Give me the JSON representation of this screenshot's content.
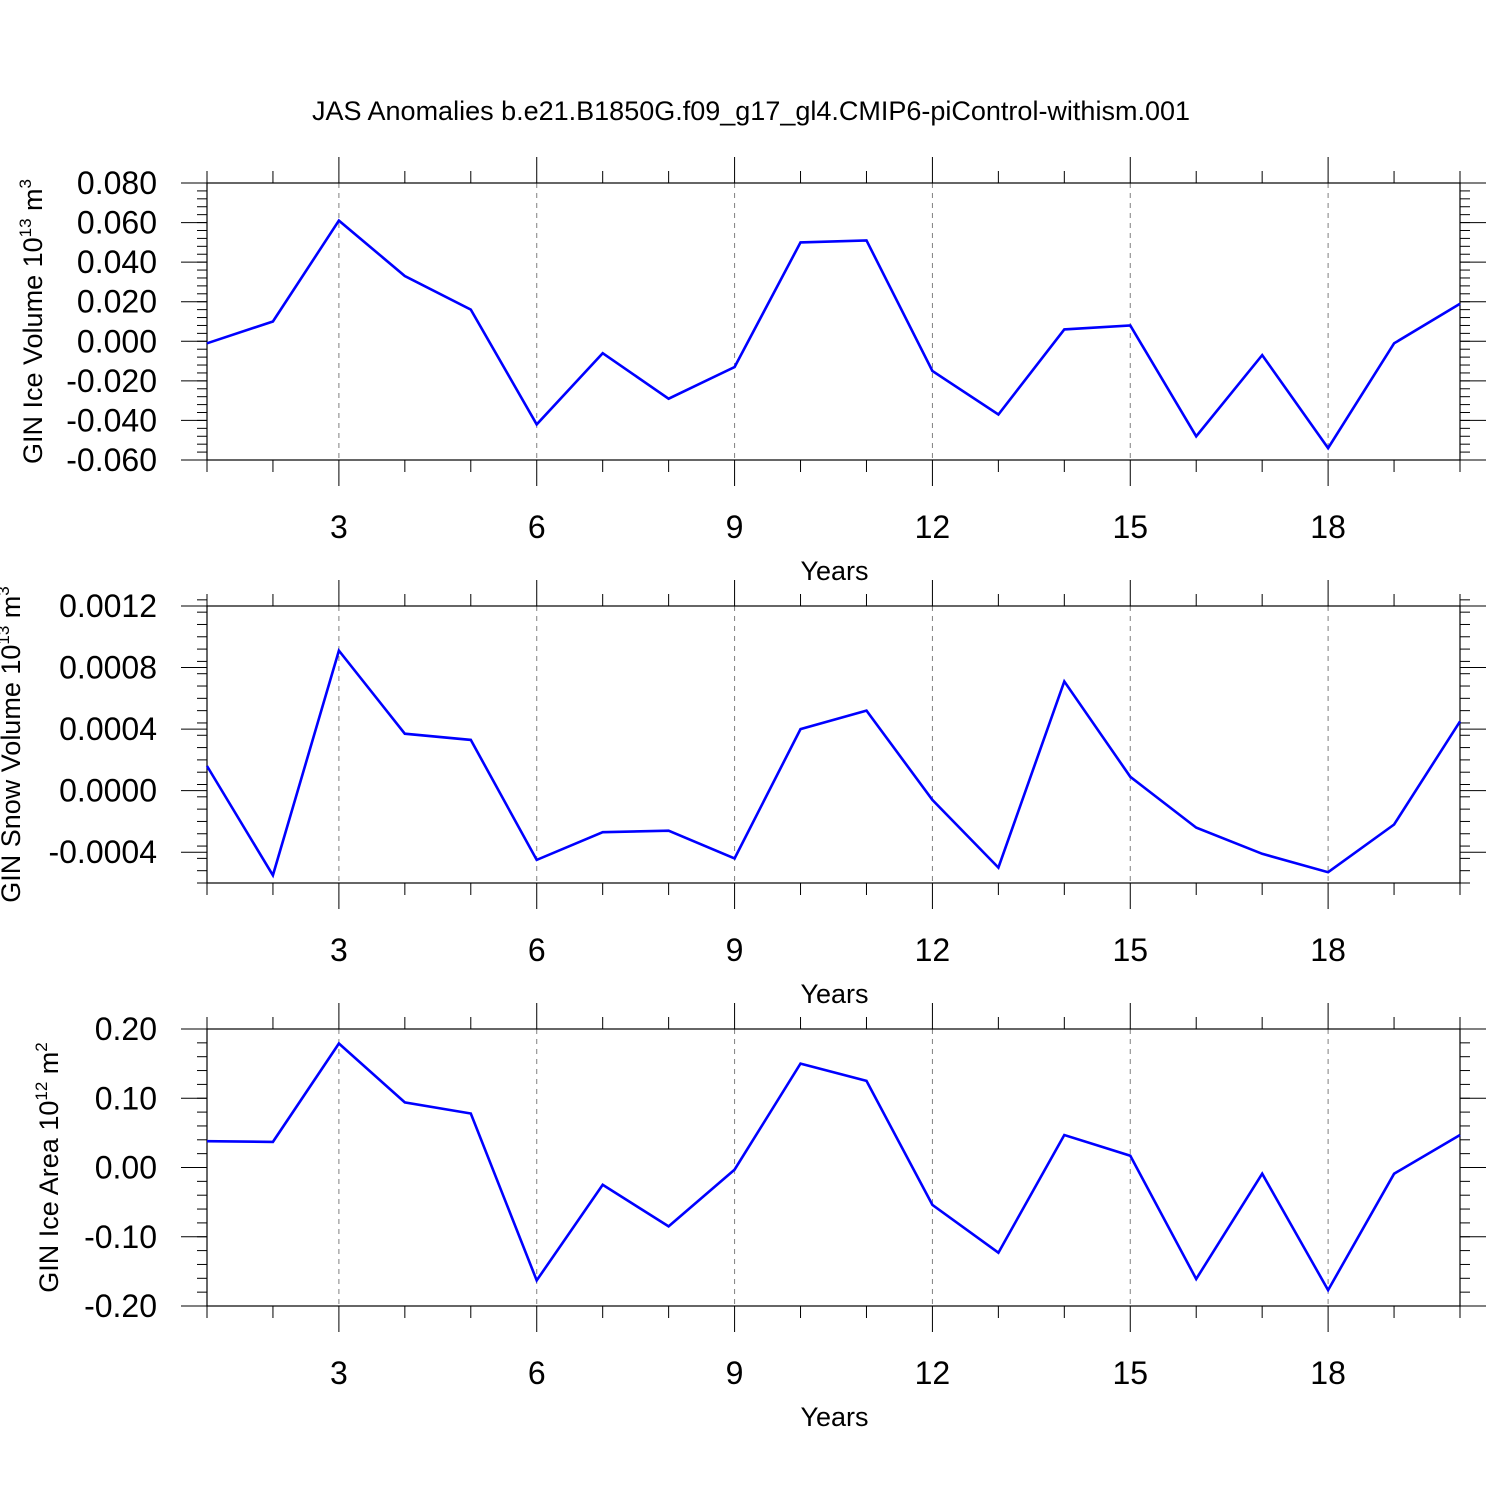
{
  "title": "JAS Anomalies b.e21.B1850G.f09_g17_gl4.CMIP6-piControl-withism.001",
  "colors": {
    "line": "#0000ff",
    "axis": "#000000",
    "grid": "#808080",
    "background": "#ffffff"
  },
  "chart_data": [
    {
      "type": "line",
      "ylabel": "GIN Ice Volume 10",
      "ylabel_sup": "13",
      "ylabel_unit": " m",
      "ylabel_unit_sup": "3",
      "xlabel": "Years",
      "xlim": [
        1,
        20
      ],
      "ylim": [
        -0.06,
        0.08
      ],
      "x_ticks": [
        3,
        6,
        9,
        12,
        15,
        18
      ],
      "y_ticks": [
        "0.080",
        "0.060",
        "0.040",
        "0.020",
        "0.000",
        "-0.020",
        "-0.040",
        "-0.060"
      ],
      "grid": "vertical dashed at major x ticks",
      "x": [
        1,
        2,
        3,
        4,
        5,
        6,
        7,
        8,
        9,
        10,
        11,
        12,
        13,
        14,
        15,
        16,
        17,
        18,
        19,
        20
      ],
      "series": [
        {
          "values": [
            -0.001,
            0.01,
            0.061,
            0.033,
            0.016,
            -0.042,
            -0.006,
            -0.029,
            -0.013,
            0.05,
            0.051,
            -0.015,
            -0.037,
            0.006,
            0.008,
            -0.048,
            -0.007,
            -0.054,
            -0.001,
            0.019
          ]
        }
      ]
    },
    {
      "type": "line",
      "ylabel": "GIN Snow Volume 10",
      "ylabel_sup": "13",
      "ylabel_unit": " m",
      "ylabel_unit_sup": "3",
      "xlabel": "Years",
      "xlim": [
        1,
        20
      ],
      "ylim": [
        -0.0006,
        0.0012
      ],
      "x_ticks": [
        3,
        6,
        9,
        12,
        15,
        18
      ],
      "y_ticks": [
        "0.0012",
        "0.0008",
        "0.0004",
        "0.0000",
        "-0.0004"
      ],
      "grid": "vertical dashed at major x ticks",
      "x": [
        1,
        2,
        3,
        4,
        5,
        6,
        7,
        8,
        9,
        10,
        11,
        12,
        13,
        14,
        15,
        16,
        17,
        18,
        19,
        20
      ],
      "series": [
        {
          "values": [
            0.00016,
            -0.00055,
            0.00091,
            0.00037,
            0.00033,
            -0.00045,
            -0.00027,
            -0.00026,
            -0.00044,
            0.0004,
            0.00052,
            -6e-05,
            -0.0005,
            0.00071,
            9e-05,
            -0.00024,
            -0.00041,
            -0.00053,
            -0.00022,
            0.00045
          ]
        }
      ]
    },
    {
      "type": "line",
      "ylabel": "GIN Ice Area 10",
      "ylabel_sup": "12",
      "ylabel_unit": " m",
      "ylabel_unit_sup": "2",
      "xlabel": "Years",
      "xlim": [
        1,
        20
      ],
      "ylim": [
        -0.2,
        0.2
      ],
      "x_ticks": [
        3,
        6,
        9,
        12,
        15,
        18
      ],
      "y_ticks": [
        "0.20",
        "0.10",
        "0.00",
        "-0.10",
        "-0.20"
      ],
      "grid": "vertical dashed at major x ticks",
      "x": [
        1,
        2,
        3,
        4,
        5,
        6,
        7,
        8,
        9,
        10,
        11,
        12,
        13,
        14,
        15,
        16,
        17,
        18,
        19,
        20
      ],
      "series": [
        {
          "values": [
            0.038,
            0.037,
            0.179,
            0.094,
            0.078,
            -0.163,
            -0.025,
            -0.085,
            -0.003,
            0.15,
            0.125,
            -0.054,
            -0.123,
            0.047,
            0.017,
            -0.161,
            -0.009,
            -0.177,
            -0.009,
            0.047
          ]
        }
      ]
    }
  ]
}
